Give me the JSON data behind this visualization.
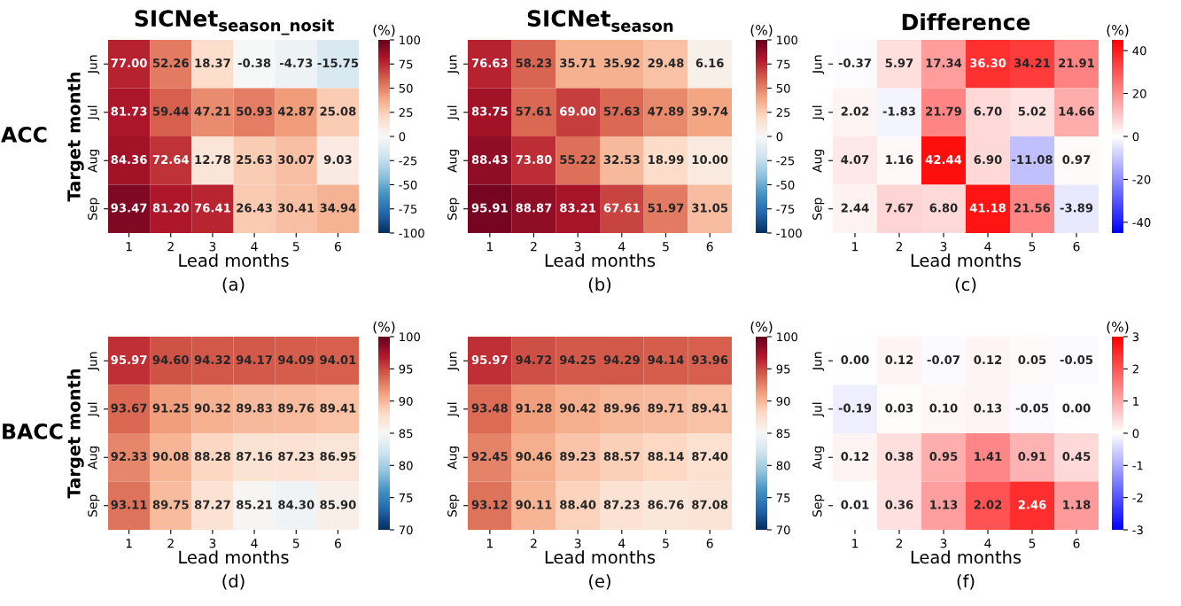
{
  "chart_data": [
    {
      "type": "heatmap",
      "title": "SICNet$_{season_nosit}$",
      "xlabel": "Lead months",
      "ylabel": "Target month",
      "clabel": "(%)",
      "annotations": [
        "(a)",
        "ACC"
      ],
      "categories": [
        "1",
        "2",
        "3",
        "4",
        "5",
        "6"
      ],
      "y_categories": [
        "Jun",
        "Jul",
        "Aug",
        "Sep"
      ],
      "cells": [
        [
          77.0,
          52.26,
          18.37,
          -0.38,
          -4.73,
          -15.75
        ],
        [
          81.73,
          59.44,
          47.21,
          50.93,
          42.87,
          25.08
        ],
        [
          84.36,
          72.64,
          12.78,
          25.63,
          30.07,
          9.03
        ],
        [
          93.47,
          81.2,
          76.41,
          26.43,
          30.41,
          34.94
        ]
      ],
      "cell_labels": [
        [
          "77.00",
          "52.26",
          "18.37",
          "-0.38",
          "-4.73",
          "-15.75"
        ],
        [
          "81.73",
          "59.44",
          "47.21",
          "50.93",
          "42.87",
          "25.08"
        ],
        [
          "84.36",
          "72.64",
          "12.78",
          "25.63",
          "30.07",
          "9.03"
        ],
        [
          "93.47",
          "81.20",
          "76.41",
          "26.43",
          "30.41",
          "34.94"
        ]
      ],
      "colors": [
        "#053061",
        "#2166ac",
        "#4393c3",
        "#92c5de",
        "#d1e5f0",
        "#f7f7f7",
        "#fddbc7",
        "#f4a582",
        "#d6604d",
        "#b2182b",
        "#67001f"
      ],
      "clim": [
        -100,
        100
      ],
      "cticks": [
        -100,
        -75,
        -50,
        -25,
        0,
        25,
        50,
        75,
        100
      ]
    },
    {
      "type": "heatmap",
      "title": "SICNet$_{season}$",
      "xlabel": "Lead months",
      "clabel": "(%)",
      "annotations": [
        "(b)"
      ],
      "categories": [
        "1",
        "2",
        "3",
        "4",
        "5",
        "6"
      ],
      "y_categories": [
        "Jun",
        "Jul",
        "Aug",
        "Sep"
      ],
      "cells": [
        [
          76.63,
          58.23,
          35.71,
          35.92,
          29.48,
          6.16
        ],
        [
          83.75,
          57.61,
          69.0,
          57.63,
          47.89,
          39.74
        ],
        [
          88.43,
          73.8,
          55.22,
          32.53,
          18.99,
          10.0
        ],
        [
          95.91,
          88.87,
          83.21,
          67.61,
          51.97,
          31.05
        ]
      ],
      "cell_labels": [
        [
          "76.63",
          "58.23",
          "35.71",
          "35.92",
          "29.48",
          "6.16"
        ],
        [
          "83.75",
          "57.61",
          "69.00",
          "57.63",
          "47.89",
          "39.74"
        ],
        [
          "88.43",
          "73.80",
          "55.22",
          "32.53",
          "18.99",
          "10.00"
        ],
        [
          "95.91",
          "88.87",
          "83.21",
          "67.61",
          "51.97",
          "31.05"
        ]
      ],
      "colors": [
        "#053061",
        "#2166ac",
        "#4393c3",
        "#92c5de",
        "#d1e5f0",
        "#f7f7f7",
        "#fddbc7",
        "#f4a582",
        "#d6604d",
        "#b2182b",
        "#67001f"
      ],
      "clim": [
        -100,
        100
      ],
      "cticks": [
        -100,
        -75,
        -50,
        -25,
        0,
        25,
        50,
        75,
        100
      ]
    },
    {
      "type": "heatmap",
      "title": "Difference",
      "xlabel": "Lead months",
      "clabel": "(%)",
      "annotations": [
        "(c)"
      ],
      "categories": [
        "1",
        "2",
        "3",
        "4",
        "5",
        "6"
      ],
      "y_categories": [
        "Jun",
        "Jul",
        "Aug",
        "Sep"
      ],
      "cells": [
        [
          -0.37,
          5.97,
          17.34,
          36.3,
          34.21,
          21.91
        ],
        [
          2.02,
          -1.83,
          21.79,
          6.7,
          5.02,
          14.66
        ],
        [
          4.07,
          1.16,
          42.44,
          6.9,
          -11.08,
          0.97
        ],
        [
          2.44,
          7.67,
          6.8,
          41.18,
          21.56,
          -3.89
        ]
      ],
      "cell_labels": [
        [
          "-0.37",
          "5.97",
          "17.34",
          "36.30",
          "34.21",
          "21.91"
        ],
        [
          "2.02",
          "-1.83",
          "21.79",
          "6.70",
          "5.02",
          "14.66"
        ],
        [
          "4.07",
          "1.16",
          "42.44",
          "6.90",
          "-11.08",
          "0.97"
        ],
        [
          "2.44",
          "7.67",
          "6.80",
          "41.18",
          "21.56",
          "-3.89"
        ]
      ],
      "colors": [
        "#0000ff",
        "#ffffff",
        "#ff0000"
      ],
      "clim": [
        -45,
        45
      ],
      "cticks": [
        -40,
        -20,
        0,
        20,
        40
      ]
    },
    {
      "type": "heatmap",
      "xlabel": "Lead months",
      "ylabel": "Target month",
      "clabel": "(%)",
      "annotations": [
        "(d)",
        "BACC"
      ],
      "categories": [
        "1",
        "2",
        "3",
        "4",
        "5",
        "6"
      ],
      "y_categories": [
        "Jun",
        "Jul",
        "Aug",
        "Sep"
      ],
      "cells": [
        [
          95.97,
          94.6,
          94.32,
          94.17,
          94.09,
          94.01
        ],
        [
          93.67,
          91.25,
          90.32,
          89.83,
          89.76,
          89.41
        ],
        [
          92.33,
          90.08,
          88.28,
          87.16,
          87.23,
          86.95
        ],
        [
          93.11,
          89.75,
          87.27,
          85.21,
          84.3,
          85.9
        ]
      ],
      "cell_labels": [
        [
          "95.97",
          "94.60",
          "94.32",
          "94.17",
          "94.09",
          "94.01"
        ],
        [
          "93.67",
          "91.25",
          "90.32",
          "89.83",
          "89.76",
          "89.41"
        ],
        [
          "92.33",
          "90.08",
          "88.28",
          "87.16",
          "87.23",
          "86.95"
        ],
        [
          "93.11",
          "89.75",
          "87.27",
          "85.21",
          "84.30",
          "85.90"
        ]
      ],
      "colors": [
        "#053061",
        "#2166ac",
        "#4393c3",
        "#92c5de",
        "#d1e5f0",
        "#f7f7f7",
        "#fddbc7",
        "#f4a582",
        "#d6604d",
        "#b2182b",
        "#67001f"
      ],
      "clim": [
        70,
        100
      ],
      "cticks": [
        70,
        75,
        80,
        85,
        90,
        95,
        100
      ]
    },
    {
      "type": "heatmap",
      "xlabel": "Lead months",
      "clabel": "(%)",
      "annotations": [
        "(e)"
      ],
      "categories": [
        "1",
        "2",
        "3",
        "4",
        "5",
        "6"
      ],
      "y_categories": [
        "Jun",
        "Jul",
        "Aug",
        "Sep"
      ],
      "cells": [
        [
          95.97,
          94.72,
          94.25,
          94.29,
          94.14,
          93.96
        ],
        [
          93.48,
          91.28,
          90.42,
          89.96,
          89.71,
          89.41
        ],
        [
          92.45,
          90.46,
          89.23,
          88.57,
          88.14,
          87.4
        ],
        [
          93.12,
          90.11,
          88.4,
          87.23,
          86.76,
          87.08
        ]
      ],
      "cell_labels": [
        [
          "95.97",
          "94.72",
          "94.25",
          "94.29",
          "94.14",
          "93.96"
        ],
        [
          "93.48",
          "91.28",
          "90.42",
          "89.96",
          "89.71",
          "89.41"
        ],
        [
          "92.45",
          "90.46",
          "89.23",
          "88.57",
          "88.14",
          "87.40"
        ],
        [
          "93.12",
          "90.11",
          "88.40",
          "87.23",
          "86.76",
          "87.08"
        ]
      ],
      "colors": [
        "#053061",
        "#2166ac",
        "#4393c3",
        "#92c5de",
        "#d1e5f0",
        "#f7f7f7",
        "#fddbc7",
        "#f4a582",
        "#d6604d",
        "#b2182b",
        "#67001f"
      ],
      "clim": [
        70,
        100
      ],
      "cticks": [
        70,
        75,
        80,
        85,
        90,
        95,
        100
      ]
    },
    {
      "type": "heatmap",
      "xlabel": "Lead months",
      "clabel": "(%)",
      "annotations": [
        "(f)"
      ],
      "categories": [
        "1",
        "2",
        "3",
        "4",
        "5",
        "6"
      ],
      "y_categories": [
        "Jun",
        "Jul",
        "Aug",
        "Sep"
      ],
      "cells": [
        [
          0.0,
          0.12,
          -0.07,
          0.12,
          0.05,
          -0.05
        ],
        [
          -0.19,
          0.03,
          0.1,
          0.13,
          -0.05,
          0.0
        ],
        [
          0.12,
          0.38,
          0.95,
          1.41,
          0.91,
          0.45
        ],
        [
          0.01,
          0.36,
          1.13,
          2.02,
          2.46,
          1.18
        ]
      ],
      "cell_labels": [
        [
          "0.00",
          "0.12",
          "-0.07",
          "0.12",
          "0.05",
          "-0.05"
        ],
        [
          "-0.19",
          "0.03",
          "0.10",
          "0.13",
          "-0.05",
          "0.00"
        ],
        [
          "0.12",
          "0.38",
          "0.95",
          "1.41",
          "0.91",
          "0.45"
        ],
        [
          "0.01",
          "0.36",
          "1.13",
          "2.02",
          "2.46",
          "1.18"
        ]
      ],
      "colors": [
        "#0000ff",
        "#ffffff",
        "#ff0000"
      ],
      "clim": [
        -3,
        3
      ],
      "cticks": [
        -3,
        -2,
        -1,
        0,
        1,
        2,
        3
      ]
    }
  ]
}
